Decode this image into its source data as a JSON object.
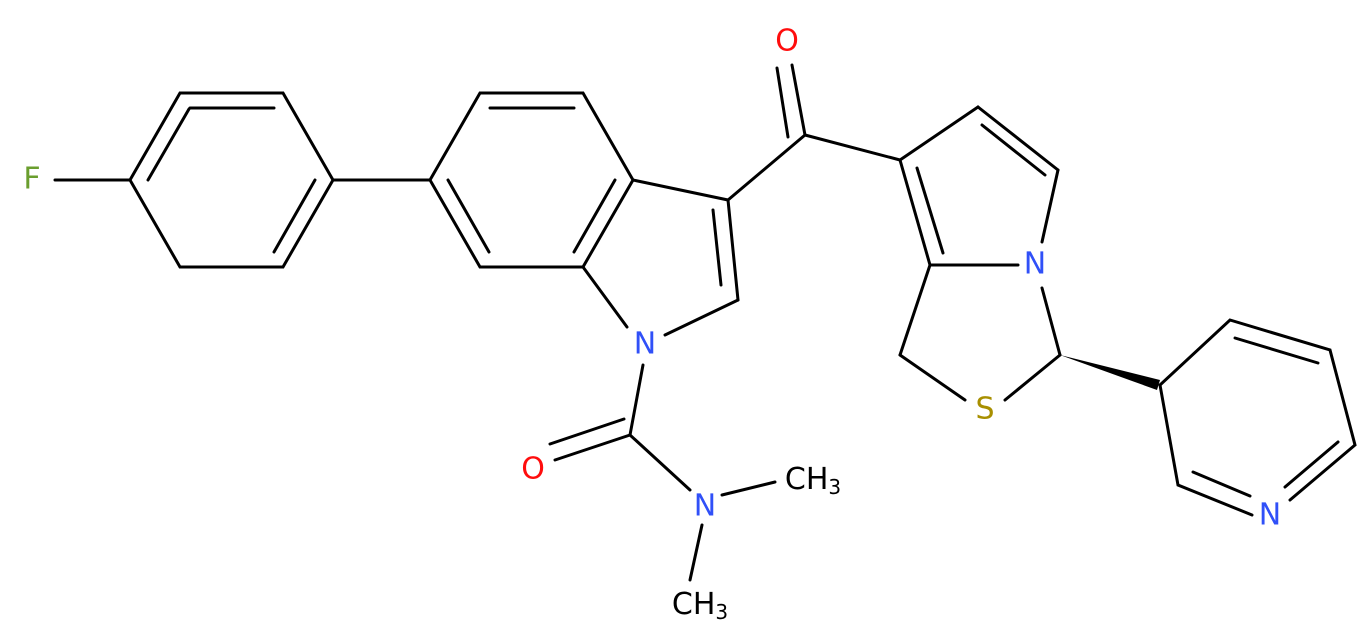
{
  "atoms": [
    {
      "label": "F"
    },
    {
      "label": "N"
    },
    {
      "label": "O"
    },
    {
      "label": "N"
    },
    {
      "label": "CH",
      "subscript": "3"
    },
    {
      "label": "CH",
      "subscript": "3"
    },
    {
      "label": "O"
    },
    {
      "label": "N"
    },
    {
      "label": "S"
    },
    {
      "label": "N"
    }
  ]
}
